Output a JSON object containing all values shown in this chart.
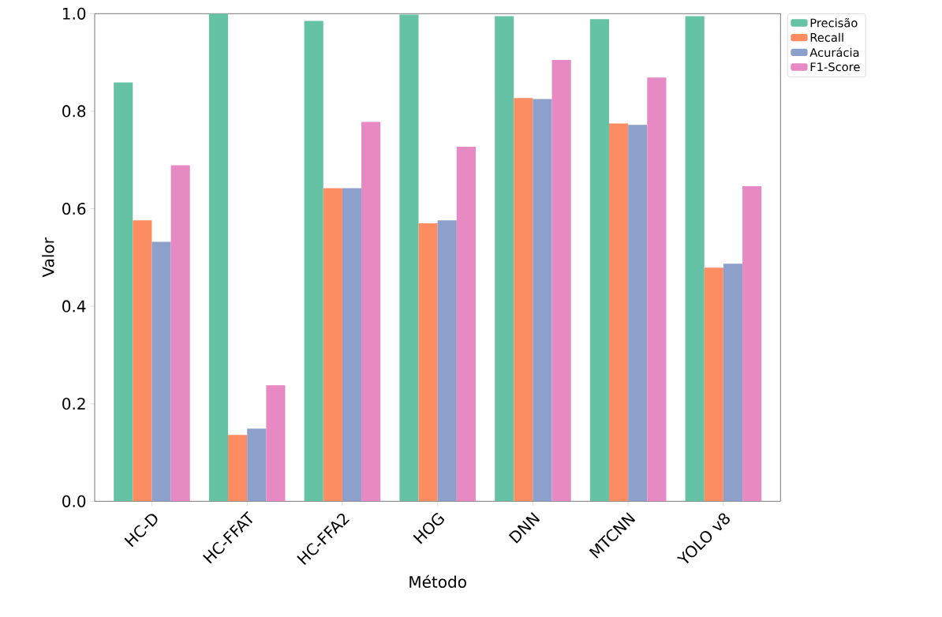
{
  "chart_data": {
    "type": "bar",
    "xlabel": "Método",
    "ylabel": "Valor",
    "categories": [
      "HC-D",
      "HC-FFAT",
      "HC-FFA2",
      "HOG",
      "DNN",
      "MTCNN",
      "YOLO v8"
    ],
    "series": [
      {
        "name": "Precisão",
        "color": "#66c2a5",
        "values": [
          0.859,
          1.0,
          0.985,
          0.998,
          0.995,
          0.989,
          0.995
        ]
      },
      {
        "name": "Recall",
        "color": "#fc8d62",
        "values": [
          0.576,
          0.136,
          0.642,
          0.57,
          0.827,
          0.775,
          0.479
        ]
      },
      {
        "name": "Acurácia",
        "color": "#8da0cb",
        "values": [
          0.532,
          0.149,
          0.642,
          0.576,
          0.825,
          0.772,
          0.487
        ]
      },
      {
        "name": "F1-Score",
        "color": "#e78ac3",
        "values": [
          0.689,
          0.238,
          0.778,
          0.727,
          0.905,
          0.869,
          0.646
        ]
      }
    ],
    "ylim": [
      0,
      1.0
    ],
    "yticks": [
      {
        "value": 0,
        "label": "0.0"
      },
      0.2,
      0.4,
      0.6,
      0.8,
      {
        "value": 1.0,
        "label": "1.0"
      }
    ],
    "legend": "top right"
  }
}
